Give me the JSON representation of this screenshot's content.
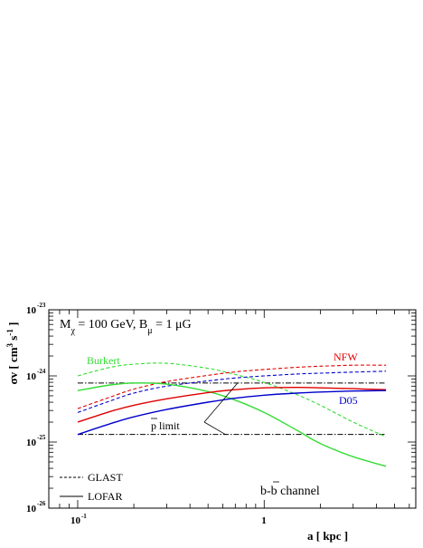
{
  "chart_data": {
    "type": "line",
    "title": "",
    "xlabel": "a [ kpc ]",
    "ylabel_parts": {
      "main": "σv [ cm",
      "sup1": "3",
      "mid": " s",
      "sup2": "-1",
      "end": " ]"
    },
    "x_scale": "log",
    "y_scale": "log",
    "xlim": [
      0.07,
      6.5
    ],
    "ylim": [
      1e-26,
      1e-23
    ],
    "x_ticks": [
      {
        "value": 0.1,
        "base": "10",
        "exp": "-1"
      },
      {
        "value": 1,
        "base": "1",
        "exp": ""
      }
    ],
    "y_ticks": [
      {
        "value": 1e-23,
        "base": "10",
        "exp": "-23"
      },
      {
        "value": 1e-24,
        "base": "10",
        "exp": "-24"
      },
      {
        "value": 1e-25,
        "base": "10",
        "exp": "-25"
      },
      {
        "value": 1e-26,
        "base": "10",
        "exp": "-26"
      }
    ],
    "annotation_main": {
      "m": "M",
      "m_sub": "χ",
      "eq1": " = 100 GeV, B",
      "b_sub": "μ",
      "eq2": " = 1 μG"
    },
    "channel_label": {
      "b": "b-",
      "bbar": "b",
      "rest": " channel"
    },
    "pbar_label": {
      "p": "p",
      "rest": " limit"
    },
    "legend": [
      {
        "label": "GLAST",
        "dash": "dashed"
      },
      {
        "label": "LOFAR",
        "dash": "solid"
      }
    ],
    "profile_labels": [
      {
        "label": "Burkert",
        "color": "#33dd33"
      },
      {
        "label": "NFW",
        "color": "#e00000"
      },
      {
        "label": "D05",
        "color": "#0000cc"
      }
    ],
    "series": [
      {
        "profile": "Burkert",
        "instrument": "GLAST",
        "color": "#33dd33",
        "dash": "dashed",
        "x": [
          0.1,
          0.15,
          0.2,
          0.3,
          0.5,
          0.7,
          1.0,
          1.5,
          2.0,
          3.0,
          4.5
        ],
        "y": [
          1e-24,
          1.35e-24,
          1.5e-24,
          1.55e-24,
          1.3e-24,
          1.05e-24,
          8e-25,
          5.2e-25,
          3.6e-25,
          2e-25,
          1.2e-25
        ]
      },
      {
        "profile": "NFW",
        "instrument": "GLAST",
        "color": "#e00000",
        "dash": "dashed",
        "x": [
          0.1,
          0.15,
          0.2,
          0.3,
          0.5,
          0.7,
          1.0,
          1.5,
          2.0,
          3.0,
          4.5
        ],
        "y": [
          3.2e-25,
          4.8e-25,
          6.3e-25,
          8.2e-25,
          1.02e-24,
          1.15e-24,
          1.25e-24,
          1.35e-24,
          1.4e-24,
          1.45e-24,
          1.45e-24
        ]
      },
      {
        "profile": "D05",
        "instrument": "GLAST",
        "color": "#0000cc",
        "dash": "dashed",
        "x": [
          0.1,
          0.15,
          0.2,
          0.3,
          0.5,
          0.7,
          1.0,
          1.5,
          2.0,
          3.0,
          4.5
        ],
        "y": [
          2.8e-25,
          4.2e-25,
          5.5e-25,
          7e-25,
          8.4e-25,
          9.3e-25,
          1e-24,
          1.07e-24,
          1.1e-24,
          1.14e-24,
          1.18e-24
        ]
      },
      {
        "profile": "Burkert",
        "instrument": "LOFAR",
        "color": "#33dd33",
        "dash": "solid",
        "x": [
          0.1,
          0.15,
          0.2,
          0.3,
          0.5,
          0.7,
          1.0,
          1.5,
          2.0,
          3.0,
          4.5
        ],
        "y": [
          6e-25,
          7.3e-25,
          7.8e-25,
          7.5e-25,
          5.8e-25,
          4.3e-25,
          2.8e-25,
          1.5e-25,
          9.5e-26,
          6e-26,
          4.3e-26
        ]
      },
      {
        "profile": "NFW",
        "instrument": "LOFAR",
        "color": "#e00000",
        "dash": "solid",
        "x": [
          0.1,
          0.15,
          0.2,
          0.3,
          0.5,
          0.7,
          1.0,
          1.5,
          2.0,
          3.0,
          4.5
        ],
        "y": [
          2e-25,
          2.9e-25,
          3.6e-25,
          4.5e-25,
          5.6e-25,
          6.2e-25,
          6.6e-25,
          6.7e-25,
          6.6e-25,
          6.4e-25,
          6.2e-25
        ]
      },
      {
        "profile": "D05",
        "instrument": "LOFAR",
        "color": "#0000cc",
        "dash": "solid",
        "x": [
          0.1,
          0.15,
          0.2,
          0.3,
          0.5,
          0.7,
          1.0,
          1.5,
          2.0,
          3.0,
          4.5
        ],
        "y": [
          1.3e-25,
          1.9e-25,
          2.4e-25,
          3.1e-25,
          4e-25,
          4.6e-25,
          5.1e-25,
          5.5e-25,
          5.7e-25,
          5.9e-25,
          6e-25
        ]
      }
    ],
    "pbar_limits": [
      {
        "y": 7.8e-25,
        "color": "#000000",
        "dash": "dashdot"
      },
      {
        "y": 1.3e-25,
        "color": "#000000",
        "dash": "dashdot"
      }
    ]
  }
}
